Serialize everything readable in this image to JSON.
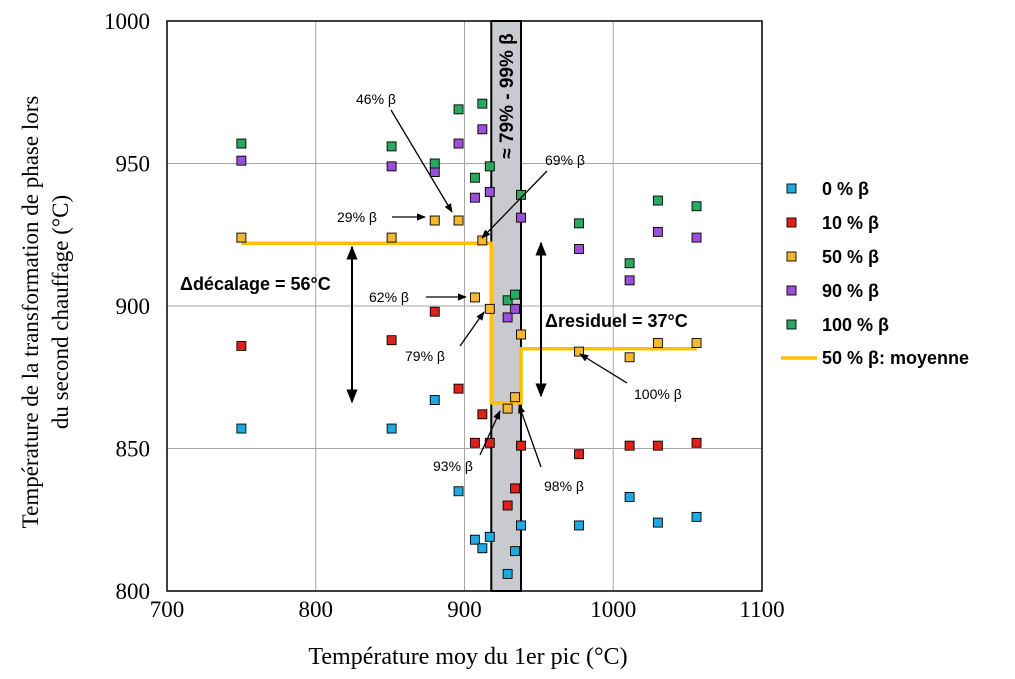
{
  "chart_data": {
    "type": "scatter",
    "xlabel": "Température moy du 1er pic (°C)",
    "ylabel_line1": "Température de la transformation de phase lors",
    "ylabel_line2": "du second chauffage (°C)",
    "xlim": [
      700,
      1100
    ],
    "ylim": [
      800,
      1000
    ],
    "x_ticks": [
      "700",
      "800",
      "900",
      "1000",
      "1100"
    ],
    "y_ticks": [
      "800",
      "850",
      "900",
      "950",
      "1000"
    ],
    "grid": true,
    "legend_position": "right",
    "band": {
      "x": [
        918,
        938
      ],
      "label": "≈ 79% - 99% β",
      "color": "#c8cad0"
    },
    "series": [
      {
        "name": "0 % β",
        "color": "#1fa9e1",
        "points": [
          [
            750,
            857
          ],
          [
            851,
            857
          ],
          [
            880,
            867
          ],
          [
            896,
            835
          ],
          [
            907,
            818
          ],
          [
            912,
            815
          ],
          [
            917,
            819
          ],
          [
            929,
            806
          ],
          [
            934,
            814
          ],
          [
            938,
            823
          ],
          [
            977,
            823
          ],
          [
            1011,
            833
          ],
          [
            1030,
            824
          ],
          [
            1056,
            826
          ]
        ]
      },
      {
        "name": "10 % β",
        "color": "#e0201b",
        "points": [
          [
            750,
            886
          ],
          [
            851,
            888
          ],
          [
            880,
            898
          ],
          [
            896,
            871
          ],
          [
            907,
            852
          ],
          [
            912,
            862
          ],
          [
            917,
            852
          ],
          [
            929,
            830
          ],
          [
            934,
            836
          ],
          [
            938,
            851
          ],
          [
            977,
            848
          ],
          [
            1011,
            851
          ],
          [
            1030,
            851
          ],
          [
            1056,
            852
          ]
        ]
      },
      {
        "name": "50 % β",
        "color": "#f4b731",
        "points": [
          [
            750,
            924
          ],
          [
            851,
            924
          ],
          [
            880,
            930
          ],
          [
            896,
            930
          ],
          [
            907,
            903
          ],
          [
            912,
            923
          ],
          [
            917,
            899
          ],
          [
            929,
            864
          ],
          [
            934,
            868
          ],
          [
            938,
            890
          ],
          [
            977,
            884
          ],
          [
            1011,
            882
          ],
          [
            1030,
            887
          ],
          [
            1056,
            887
          ]
        ]
      },
      {
        "name": "90 % β",
        "color": "#9b4fd8",
        "points": [
          [
            750,
            951
          ],
          [
            851,
            949
          ],
          [
            880,
            947
          ],
          [
            896,
            957
          ],
          [
            907,
            938
          ],
          [
            912,
            962
          ],
          [
            917,
            940
          ],
          [
            929,
            896
          ],
          [
            934,
            899
          ],
          [
            938,
            931
          ],
          [
            977,
            920
          ],
          [
            1011,
            909
          ],
          [
            1030,
            926
          ],
          [
            1056,
            924
          ]
        ]
      },
      {
        "name": "100 % β",
        "color": "#28a860",
        "points": [
          [
            750,
            957
          ],
          [
            851,
            956
          ],
          [
            880,
            950
          ],
          [
            896,
            969
          ],
          [
            907,
            945
          ],
          [
            912,
            971
          ],
          [
            917,
            949
          ],
          [
            929,
            902
          ],
          [
            934,
            904
          ],
          [
            938,
            939
          ],
          [
            977,
            929
          ],
          [
            1011,
            915
          ],
          [
            1030,
            937
          ],
          [
            1056,
            935
          ]
        ]
      }
    ],
    "average_line": {
      "name": "50 % β: moyenne",
      "color": "#ffc000",
      "points": [
        [
          750,
          922
        ],
        [
          918,
          922
        ],
        [
          918,
          866
        ],
        [
          938,
          866
        ],
        [
          938,
          885
        ],
        [
          1056,
          885
        ]
      ]
    },
    "annotations": {
      "decalage": "Δdécalage =  56°C",
      "residuel": "Δresiduel =  37°C",
      "p46": "46% β",
      "p29": "29% β",
      "p69": "69% β",
      "p62": "62% β",
      "p79": "79% β",
      "p93": "93% β",
      "p98": "98% β",
      "p100": "100% β"
    }
  }
}
